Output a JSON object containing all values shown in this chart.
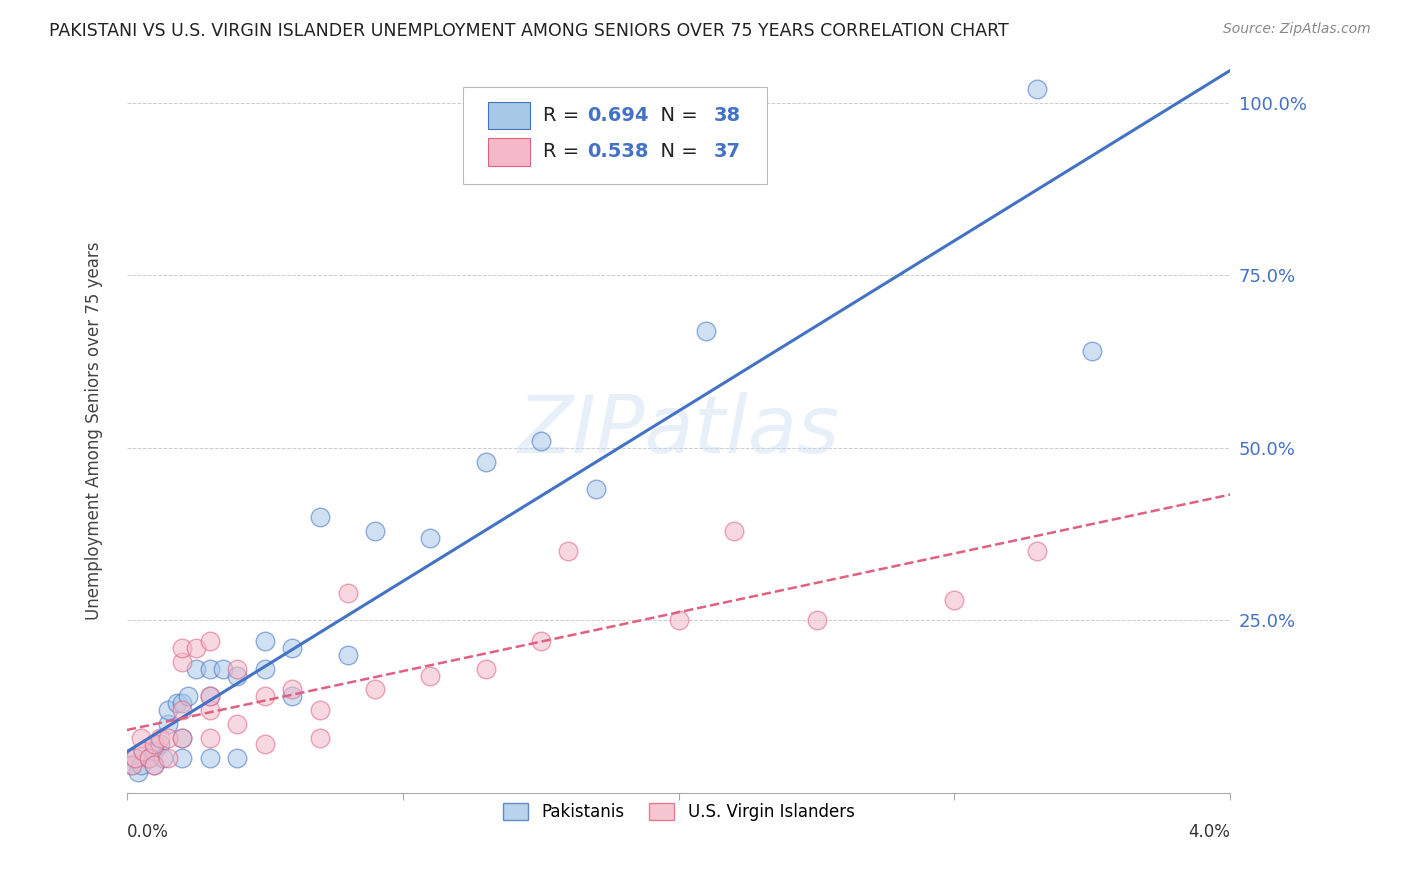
{
  "title": "PAKISTANI VS U.S. VIRGIN ISLANDER UNEMPLOYMENT AMONG SENIORS OVER 75 YEARS CORRELATION CHART",
  "source": "Source: ZipAtlas.com",
  "ylabel": "Unemployment Among Seniors over 75 years",
  "xmin": 0.0,
  "xmax": 0.04,
  "ymin": 0.0,
  "ymax": 1.05,
  "yticks": [
    0.0,
    0.25,
    0.5,
    0.75,
    1.0
  ],
  "ytick_labels": [
    "",
    "25.0%",
    "50.0%",
    "75.0%",
    "100.0%"
  ],
  "xticks": [
    0.0,
    0.01,
    0.02,
    0.03,
    0.04
  ],
  "r_pakistani": 0.694,
  "n_pakistani": 38,
  "r_virgin": 0.538,
  "n_virgin": 37,
  "color_pakistani_fill": "#a8c8e8",
  "color_pakistani_edge": "#4472c4",
  "color_virgin_fill": "#f4b8c8",
  "color_virgin_edge": "#e06080",
  "color_pakistani_line": "#4472c4",
  "color_virgin_line": "#e06080",
  "pakistani_x": [
    0.0002,
    0.0003,
    0.0004,
    0.0005,
    0.0006,
    0.0008,
    0.001,
    0.001,
    0.0012,
    0.0013,
    0.0015,
    0.0015,
    0.0018,
    0.002,
    0.002,
    0.002,
    0.0022,
    0.0025,
    0.003,
    0.003,
    0.003,
    0.0035,
    0.004,
    0.004,
    0.005,
    0.005,
    0.006,
    0.006,
    0.007,
    0.008,
    0.009,
    0.011,
    0.013,
    0.015,
    0.017,
    0.021,
    0.033,
    0.035
  ],
  "pakistani_y": [
    0.04,
    0.05,
    0.03,
    0.04,
    0.06,
    0.05,
    0.04,
    0.06,
    0.07,
    0.05,
    0.1,
    0.12,
    0.13,
    0.05,
    0.08,
    0.13,
    0.14,
    0.18,
    0.05,
    0.14,
    0.18,
    0.18,
    0.05,
    0.17,
    0.18,
    0.22,
    0.14,
    0.21,
    0.4,
    0.2,
    0.38,
    0.37,
    0.48,
    0.51,
    0.44,
    0.67,
    1.02,
    0.64
  ],
  "virgin_x": [
    0.0002,
    0.0003,
    0.0005,
    0.0006,
    0.0008,
    0.001,
    0.001,
    0.0012,
    0.0015,
    0.0015,
    0.002,
    0.002,
    0.002,
    0.002,
    0.0025,
    0.003,
    0.003,
    0.003,
    0.003,
    0.004,
    0.004,
    0.005,
    0.005,
    0.006,
    0.007,
    0.007,
    0.008,
    0.009,
    0.011,
    0.013,
    0.015,
    0.016,
    0.02,
    0.022,
    0.025,
    0.03,
    0.033
  ],
  "virgin_y": [
    0.04,
    0.05,
    0.08,
    0.06,
    0.05,
    0.04,
    0.07,
    0.08,
    0.05,
    0.08,
    0.08,
    0.12,
    0.19,
    0.21,
    0.21,
    0.08,
    0.12,
    0.14,
    0.22,
    0.1,
    0.18,
    0.07,
    0.14,
    0.15,
    0.08,
    0.12,
    0.29,
    0.15,
    0.17,
    0.18,
    0.22,
    0.35,
    0.25,
    0.38,
    0.25,
    0.28,
    0.35
  ]
}
